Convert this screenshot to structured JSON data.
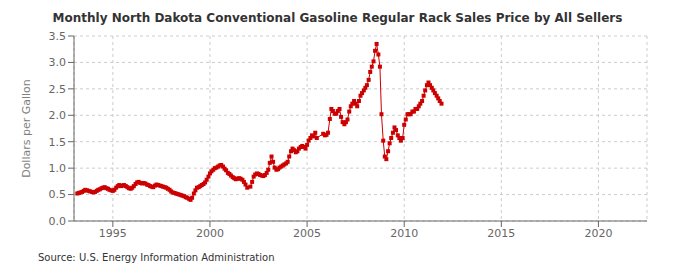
{
  "chart_data": {
    "type": "line",
    "title": "Monthly North Dakota Conventional Gasoline Regular Rack Sales Price by All Sellers",
    "ylabel": "Dollars per Gallon",
    "annotation": "Source: U.S. Energy Information Administration",
    "color": "#CC0000",
    "marker": "square",
    "grid": true,
    "xlim": [
      1993.0,
      2022.5
    ],
    "ylim": [
      0.0,
      3.5
    ],
    "xticks": [
      1995,
      2000,
      2005,
      2010,
      2015,
      2020
    ],
    "yticks": [
      {
        "value": 0.0,
        "label": "0.0"
      },
      0.5,
      {
        "value": 1.0,
        "label": "1.0"
      },
      1.5,
      {
        "value": 2.0,
        "label": "2.0"
      },
      2.5,
      {
        "value": 3.0,
        "label": "3.0"
      },
      3.5
    ],
    "x": [
      1993.17,
      1993.25,
      1993.33,
      1993.42,
      1993.5,
      1993.58,
      1993.67,
      1993.75,
      1993.83,
      1993.92,
      1994.0,
      1994.08,
      1994.17,
      1994.25,
      1994.33,
      1994.42,
      1994.5,
      1994.58,
      1994.67,
      1994.75,
      1994.83,
      1994.92,
      1995.0,
      1995.08,
      1995.17,
      1995.25,
      1995.33,
      1995.42,
      1995.5,
      1995.58,
      1995.67,
      1995.75,
      1995.83,
      1995.92,
      1996.0,
      1996.08,
      1996.17,
      1996.25,
      1996.33,
      1996.42,
      1996.5,
      1996.58,
      1996.67,
      1996.75,
      1996.83,
      1996.92,
      1997.0,
      1997.08,
      1997.17,
      1997.25,
      1997.33,
      1997.42,
      1997.5,
      1997.58,
      1997.67,
      1997.75,
      1997.83,
      1997.92,
      1998.0,
      1998.08,
      1998.17,
      1998.25,
      1998.33,
      1998.42,
      1998.5,
      1998.58,
      1998.67,
      1998.75,
      1998.83,
      1998.92,
      1999.0,
      1999.08,
      1999.17,
      1999.25,
      1999.33,
      1999.42,
      1999.5,
      1999.58,
      1999.67,
      1999.75,
      1999.83,
      1999.92,
      2000.0,
      2000.08,
      2000.17,
      2000.25,
      2000.33,
      2000.42,
      2000.5,
      2000.58,
      2000.67,
      2000.75,
      2000.83,
      2000.92,
      2001.0,
      2001.08,
      2001.17,
      2001.25,
      2001.33,
      2001.42,
      2001.5,
      2001.58,
      2001.67,
      2001.75,
      2001.83,
      2001.92,
      2002.08,
      2002.17,
      2002.25,
      2002.33,
      2002.42,
      2002.5,
      2002.58,
      2002.67,
      2002.75,
      2002.83,
      2002.92,
      2003.0,
      2003.08,
      2003.17,
      2003.25,
      2003.33,
      2003.42,
      2003.5,
      2003.58,
      2003.67,
      2003.75,
      2003.83,
      2003.92,
      2004.0,
      2004.08,
      2004.17,
      2004.25,
      2004.33,
      2004.42,
      2004.5,
      2004.58,
      2004.67,
      2004.75,
      2004.83,
      2004.92,
      2005.0,
      2005.08,
      2005.17,
      2005.25,
      2005.33,
      2005.42,
      2005.5,
      2005.83,
      2005.92,
      2006.0,
      2006.08,
      2006.17,
      2006.25,
      2006.33,
      2006.42,
      2006.5,
      2006.58,
      2006.67,
      2006.75,
      2006.83,
      2006.92,
      2007.0,
      2007.08,
      2007.17,
      2007.25,
      2007.33,
      2007.42,
      2007.5,
      2007.58,
      2007.67,
      2007.75,
      2007.83,
      2007.92,
      2008.0,
      2008.08,
      2008.17,
      2008.25,
      2008.33,
      2008.42,
      2008.5,
      2008.58,
      2008.67,
      2008.75,
      2008.83,
      2008.92,
      2009.0,
      2009.08,
      2009.17,
      2009.25,
      2009.33,
      2009.42,
      2009.5,
      2009.58,
      2009.67,
      2009.75,
      2009.83,
      2009.92,
      2010.0,
      2010.08,
      2010.17,
      2010.25,
      2010.33,
      2010.42,
      2010.5,
      2010.58,
      2010.67,
      2010.75,
      2010.83,
      2010.92,
      2011.0,
      2011.08,
      2011.17,
      2011.25,
      2011.33,
      2011.42,
      2011.5,
      2011.58,
      2011.67,
      2011.75,
      2011.83,
      2011.92
    ],
    "values": [
      0.52,
      0.53,
      0.54,
      0.55,
      0.57,
      0.59,
      0.58,
      0.57,
      0.56,
      0.55,
      0.54,
      0.55,
      0.57,
      0.59,
      0.6,
      0.62,
      0.63,
      0.64,
      0.62,
      0.61,
      0.59,
      0.58,
      0.57,
      0.59,
      0.63,
      0.66,
      0.68,
      0.66,
      0.67,
      0.68,
      0.66,
      0.64,
      0.62,
      0.61,
      0.63,
      0.66,
      0.7,
      0.73,
      0.74,
      0.72,
      0.71,
      0.72,
      0.71,
      0.69,
      0.68,
      0.66,
      0.65,
      0.64,
      0.67,
      0.69,
      0.68,
      0.67,
      0.66,
      0.65,
      0.64,
      0.63,
      0.61,
      0.59,
      0.56,
      0.54,
      0.53,
      0.52,
      0.51,
      0.5,
      0.49,
      0.48,
      0.47,
      0.45,
      0.44,
      0.42,
      0.4,
      0.44,
      0.52,
      0.58,
      0.63,
      0.64,
      0.66,
      0.68,
      0.7,
      0.73,
      0.78,
      0.84,
      0.9,
      0.94,
      0.97,
      1.0,
      1.01,
      1.03,
      1.05,
      1.06,
      1.03,
      0.99,
      0.96,
      0.91,
      0.89,
      0.86,
      0.83,
      0.81,
      0.79,
      0.8,
      0.81,
      0.8,
      0.78,
      0.74,
      0.69,
      0.63,
      0.65,
      0.74,
      0.84,
      0.88,
      0.9,
      0.89,
      0.87,
      0.86,
      0.85,
      0.87,
      0.91,
      0.97,
      1.1,
      1.22,
      1.12,
      1.01,
      0.97,
      0.98,
      1.01,
      1.03,
      1.05,
      1.07,
      1.09,
      1.12,
      1.22,
      1.32,
      1.37,
      1.34,
      1.3,
      1.32,
      1.37,
      1.4,
      1.42,
      1.4,
      1.37,
      1.44,
      1.52,
      1.57,
      1.62,
      1.6,
      1.67,
      1.57,
      1.65,
      1.62,
      1.63,
      1.67,
      1.93,
      2.12,
      2.08,
      2.03,
      2.03,
      2.08,
      2.12,
      1.97,
      1.87,
      1.83,
      1.87,
      1.92,
      2.07,
      2.17,
      2.22,
      2.27,
      2.22,
      2.17,
      2.27,
      2.37,
      2.42,
      2.47,
      2.52,
      2.57,
      2.67,
      2.82,
      2.92,
      3.02,
      3.22,
      3.35,
      3.15,
      2.92,
      2.02,
      1.52,
      1.22,
      1.17,
      1.32,
      1.47,
      1.57,
      1.67,
      1.77,
      1.72,
      1.62,
      1.57,
      1.52,
      1.57,
      1.82,
      1.92,
      2.02,
      2.02,
      2.02,
      2.07,
      2.07,
      2.12,
      2.12,
      2.17,
      2.22,
      2.27,
      2.37,
      2.47,
      2.57,
      2.62,
      2.57,
      2.52,
      2.47,
      2.42,
      2.37,
      2.32,
      2.27,
      2.22
    ]
  }
}
